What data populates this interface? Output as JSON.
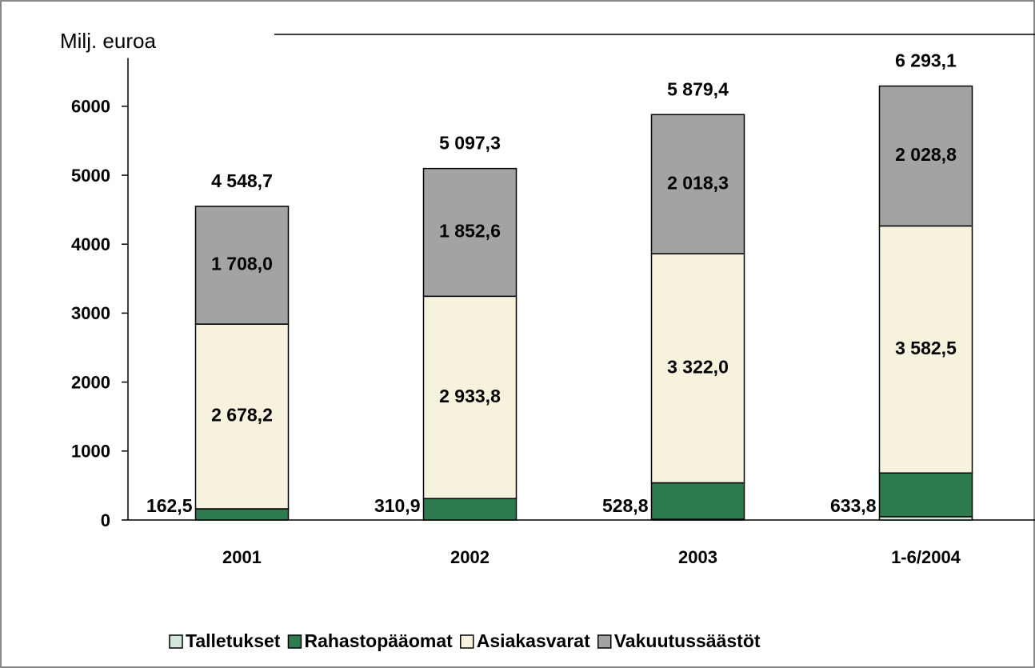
{
  "chart_data": {
    "type": "stacked_bar",
    "y_axis_label": "Milj. euroa",
    "categories": [
      "2001",
      "2002",
      "2003",
      "1-6/2004"
    ],
    "series": [
      {
        "name": "Talletukset",
        "color": "#d3e8da",
        "values": [
          0,
          0,
          10.3,
          48.0
        ]
      },
      {
        "name": "Rahastopääomat",
        "color": "#2f7b50",
        "values": [
          162.5,
          310.9,
          528.8,
          633.8
        ],
        "value_labels": [
          "162,5",
          "310,9",
          "528,8",
          "633,8"
        ]
      },
      {
        "name": "Asiakasvarat",
        "color": "#f6f2de",
        "values": [
          2678.2,
          2933.8,
          3322.0,
          3582.5
        ],
        "value_labels": [
          "2 678,2",
          "2 933,8",
          "3 322,0",
          "3 582,5"
        ]
      },
      {
        "name": "Vakuutussäästöt",
        "color": "#a3a3a3",
        "values": [
          1708.0,
          1852.6,
          2018.3,
          2028.8
        ],
        "value_labels": [
          "1 708,0",
          "1 852,6",
          "2 018,3",
          "2 028,8"
        ]
      }
    ],
    "totals": [
      4548.7,
      5097.3,
      5879.4,
      6293.1
    ],
    "total_labels": [
      "4 548,7",
      "5 097,3",
      "5 879,4",
      "6 293,1"
    ],
    "ylim": [
      0,
      6700
    ],
    "yticks": [
      0,
      1000,
      2000,
      3000,
      4000,
      5000,
      6000
    ]
  }
}
